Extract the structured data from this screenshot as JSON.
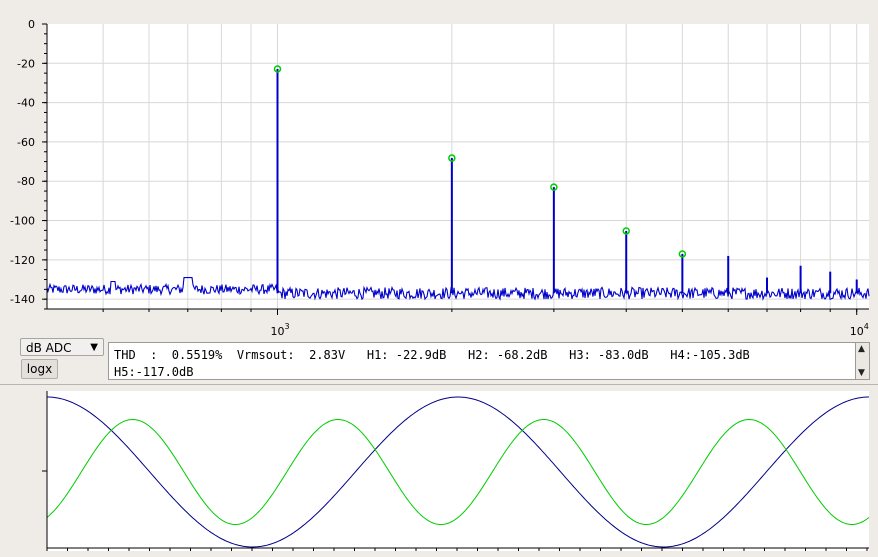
{
  "spectrum": {
    "y_ticks": [
      "0",
      "-20",
      "-40",
      "-60",
      "-80",
      "-100",
      "-120",
      "-140"
    ],
    "x_ticks": [
      {
        "base": "10",
        "exp": "3",
        "value": 1000
      },
      {
        "base": "10",
        "exp": "4",
        "value": 10000
      }
    ],
    "unit_selector": "dB ADC",
    "logx_label": "logx",
    "info_line1": "THD  :  0.5519%  Vrmsout:  2.83V   H1: -22.9dB   H2: -68.2dB   H3: -83.0dB   H4:-105.3dB",
    "info_line2": "H5:-117.0dB"
  },
  "colors": {
    "trace": "#0000cc",
    "marker": "#00cc00",
    "scope_blue": "#00008b",
    "scope_green": "#00cc00",
    "plot_bg": "#ffffff",
    "grid": "#d8d8d8"
  },
  "chart_data": [
    {
      "type": "line",
      "x_scale": "log",
      "xlim": [
        400,
        10500
      ],
      "ylim": [
        -145,
        0
      ],
      "grid": true,
      "series": [
        {
          "peaks": [
            {
              "x": 1000,
              "y": -22.9
            },
            {
              "x": 2000,
              "y": -68.2
            },
            {
              "x": 3000,
              "y": -83.0
            },
            {
              "x": 4000,
              "y": -105.3
            },
            {
              "x": 5000,
              "y": -117.0
            },
            {
              "x": 6000,
              "y": -118
            },
            {
              "x": 7000,
              "y": -129
            },
            {
              "x": 8000,
              "y": -123
            },
            {
              "x": 9000,
              "y": -126
            },
            {
              "x": 10000,
              "y": -130
            }
          ],
          "noise_floor": -137
        }
      ],
      "harmonic_markers": [
        {
          "x": 1000,
          "y": -22.9
        },
        {
          "x": 2000,
          "y": -68.2
        },
        {
          "x": 3000,
          "y": -83.0
        },
        {
          "x": 4000,
          "y": -105.3
        },
        {
          "x": 5000,
          "y": -117.0
        }
      ]
    },
    {
      "type": "line",
      "series": [
        {
          "color": "blue",
          "cycles": 2,
          "phase_deg": 90,
          "amplitude": 1.0
        },
        {
          "color": "green",
          "cycles": 4,
          "phase_deg": -60,
          "amplitude": 0.7
        }
      ]
    }
  ]
}
